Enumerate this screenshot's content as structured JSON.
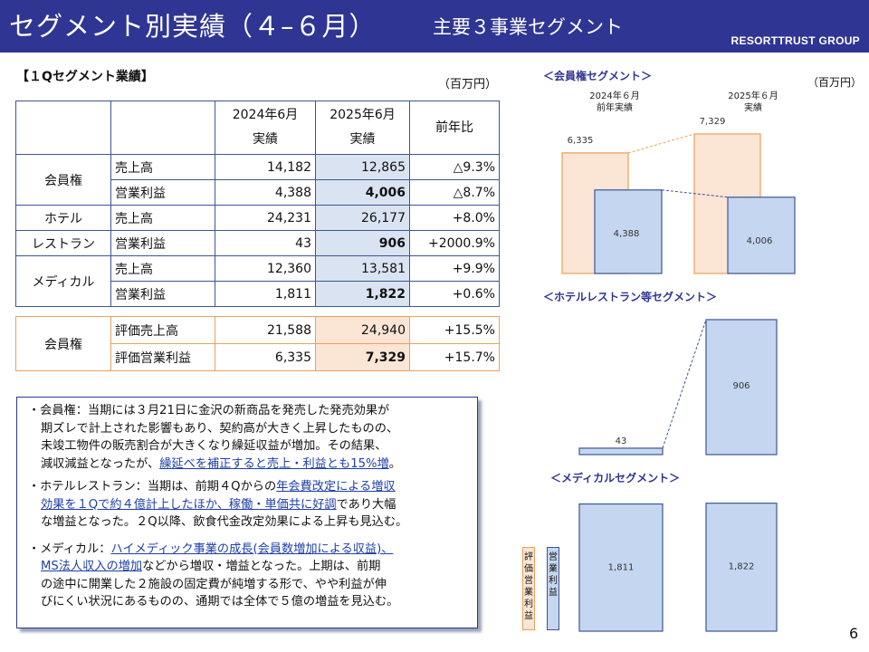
{
  "header": {
    "title": "セグメント別実績（４–６月）",
    "subtitle": "主要３事業セグメント",
    "brand": "RESORTTRUST GROUP"
  },
  "table": {
    "section_title": "【１Qセグメント業績】",
    "unit": "（百万円）",
    "col_2024_l1": "2024年6月",
    "col_2024_l2": "実績",
    "col_2025_l1": "2025年6月",
    "col_2025_l2": "実績",
    "col_yoy": "前年比",
    "groups": [
      {
        "name_l1": "会員権",
        "name_l2": "",
        "rows": [
          {
            "label": "売上高",
            "v2024": "14,182",
            "v2025": "12,865",
            "yoy": "△9.3%",
            "bold": false
          },
          {
            "label": "営業利益",
            "v2024": "4,388",
            "v2025": "4,006",
            "yoy": "△8.7%",
            "bold": true
          }
        ]
      },
      {
        "name_l1": "ホテル",
        "name_l2": "レストラン",
        "rows": [
          {
            "label": "売上高",
            "v2024": "24,231",
            "v2025": "26,177",
            "yoy": "+8.0%",
            "bold": false
          },
          {
            "label": "営業利益",
            "v2024": "43",
            "v2025": "906",
            "yoy": "+2000.9%",
            "bold": true
          }
        ]
      },
      {
        "name_l1": "メディカル",
        "name_l2": "",
        "rows": [
          {
            "label": "売上高",
            "v2024": "12,360",
            "v2025": "13,581",
            "yoy": "+9.9%",
            "bold": false
          },
          {
            "label": "営業利益",
            "v2024": "1,811",
            "v2025": "1,822",
            "yoy": "+0.6%",
            "bold": true
          }
        ]
      }
    ],
    "eval": {
      "name": "会員権",
      "rows": [
        {
          "label": "評価売上高",
          "v2024": "21,588",
          "v2025": "24,940",
          "yoy": "+15.5%",
          "bold": false
        },
        {
          "label": "評価営業利益",
          "v2024": "6,335",
          "v2025": "7,329",
          "yoy": "+15.7%",
          "bold": true
        }
      ]
    }
  },
  "comments": {
    "p1_l1": "・会員権：当期には３月21日に金沢の新商品を発売した発売効果が",
    "p1_l2": "期ズレで計上された影響もあり、契約高が大きく上昇したものの、",
    "p1_l3": "未竣工物件の販売割合が大きくなり繰延収益が増加。その結果、",
    "p1_l4a": "減収減益となったが、",
    "p1_l4u": "繰延べを補正すると売上・利益とも15%増",
    "p1_l4b": "。",
    "p2_l1a": "・ホテルレストラン：当期は、前期４Qからの",
    "p2_l1u": "年会費改定による増収",
    "p2_l2u": "効果を１Qで約４億計上したほか、稼働・単価共に好調",
    "p2_l2b": "であり大幅",
    "p2_l3": "な増益となった。２Q以降、飲食代金改定効果による上昇も見込む。",
    "p3_l1a": "・メディカル：",
    "p3_l1u": "ハイメディック事業の成長(会員数増加による収益)、",
    "p3_l2u": "MS法人収入の増加",
    "p3_l2b": "などから増収・増益となった。上期は、前期",
    "p3_l3": "の途中に開業した２施設の固定費が純増する形で、やや利益が伸",
    "p3_l4": "びにくい状況にあるものの、通期では全体で５億の増益を見込む。"
  },
  "charts": {
    "unit": "（百万円）",
    "col_2024": [
      "2024年６月",
      "前年実績"
    ],
    "col_2025": [
      "2025年６月",
      "実績"
    ],
    "membership": {
      "title": "＜会員権セグメント＞",
      "eval_op": [
        6335,
        7329
      ],
      "eval_op_labels": [
        "6,335",
        "7,329"
      ],
      "op": [
        4388,
        4006
      ],
      "op_labels": [
        "4,388",
        "4,006"
      ]
    },
    "hotel": {
      "title": "＜ホテルレストラン等セグメント＞",
      "op": [
        43,
        906
      ],
      "op_labels": [
        "43",
        "906"
      ]
    },
    "medical": {
      "title": "＜メディカルセグメント＞",
      "op": [
        1811,
        1822
      ],
      "op_labels": [
        "1,811",
        "1,822"
      ]
    },
    "legend_eval": "評価営業利益",
    "legend_op": "営業利益",
    "colors": {
      "eval_fill": "#fbe5d5",
      "eval_stroke": "#eda058",
      "op_fill": "#c5d7f0",
      "op_stroke": "#3d5593"
    }
  },
  "page_number": "6"
}
